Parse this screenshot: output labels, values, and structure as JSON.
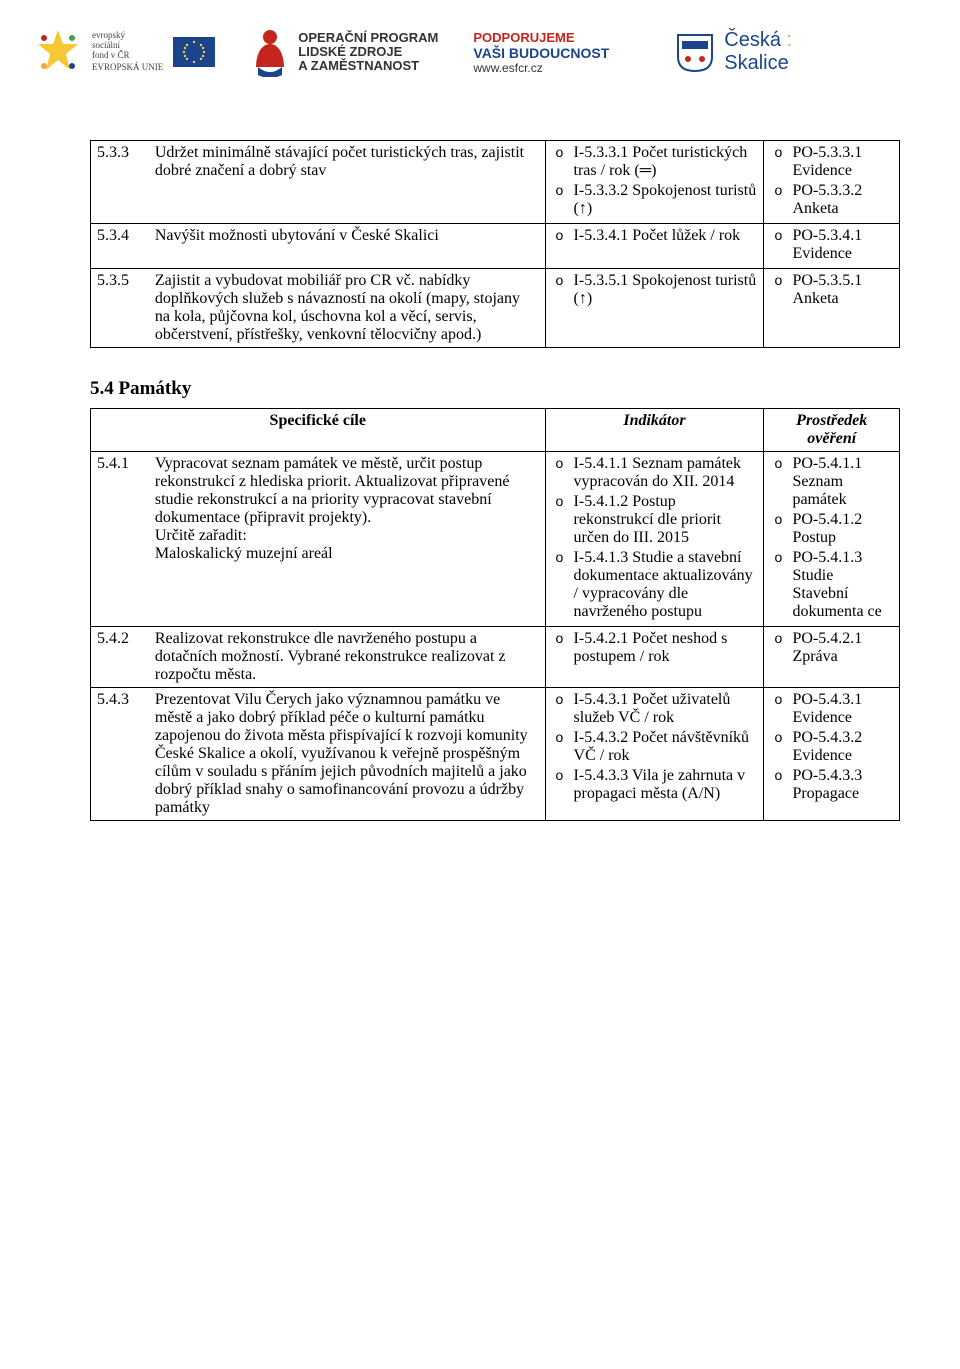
{
  "logos": {
    "esf_text1": "evropský",
    "esf_text2": "sociální",
    "esf_text3": "fond v ČR",
    "esf_text4": "EVROPSKÁ UNIE",
    "oplz_text1": "OPERAČNÍ PROGRAM",
    "oplz_text2": "LIDSKÉ ZDROJE",
    "oplz_text3": "A ZAMĚSTNANOST",
    "podporujeme_text1": "PODPORUJEME",
    "podporujeme_text2": "VAŠI BUDOUCNOST",
    "podporujeme_text3": "www.esfcr.cz",
    "skalice_text1": "Česká",
    "skalice_text2": "Skalice"
  },
  "table1": {
    "rows": [
      {
        "num": "5.3.3",
        "desc": "Udržet minimálně stávající počet turistických tras, zajistit dobré značení a dobrý stav",
        "ind": [
          "I-5.3.3.1 Počet turistických tras / rok (═)",
          "I-5.3.3.2 Spokojenost turistů (↑)"
        ],
        "po": [
          "PO-5.3.3.1 Evidence",
          "PO-5.3.3.2 Anketa"
        ]
      },
      {
        "num": "5.3.4",
        "desc": "Navýšit možnosti ubytování v České Skalici",
        "ind": [
          "I-5.3.4.1 Počet lůžek / rok"
        ],
        "po": [
          "PO-5.3.4.1 Evidence"
        ]
      },
      {
        "num": "5.3.5",
        "desc": "Zajistit a vybudovat mobiliář pro CR vč. nabídky doplňkových služeb s návazností na okolí (mapy, stojany na kola, půjčovna kol, úschovna kol a věcí, servis, občerstvení, přístřešky, venkovní tělocvičny apod.)",
        "ind": [
          "I-5.3.5.1 Spokojenost turistů (↑)"
        ],
        "po": [
          "PO-5.3.5.1 Anketa"
        ]
      }
    ]
  },
  "section_heading": "5.4 Památky",
  "table2": {
    "header": {
      "col1": "Specifické cíle",
      "col2": "Indikátor",
      "col3": "Prostředek ověření"
    },
    "rows": [
      {
        "num": "5.4.1",
        "desc": "Vypracovat seznam památek ve městě, určit postup rekonstrukcí z hlediska priorit. Aktualizovat připravené studie rekonstrukcí a na priority vypracovat stavební dokumentace (připravit projekty).\nUrčitě zařadit:\nMaloskalický muzejní areál",
        "ind": [
          "I-5.4.1.1 Seznam památek vypracován do XII. 2014",
          "I-5.4.1.2 Postup rekonstrukcí dle priorit určen do III. 2015",
          "I-5.4.1.3 Studie a stavební dokumentace aktualizovány / vypracovány dle navrženého postupu"
        ],
        "po": [
          "PO-5.4.1.1 Seznam památek",
          "PO-5.4.1.2 Postup",
          "PO-5.4.1.3 Studie Stavební dokumenta ce"
        ]
      },
      {
        "num": "5.4.2",
        "desc": "Realizovat rekonstrukce dle navrženého postupu a dotačních možností. Vybrané rekonstrukce realizovat z rozpočtu města.",
        "ind": [
          "I-5.4.2.1 Počet neshod s postupem / rok"
        ],
        "po": [
          "PO-5.4.2.1 Zpráva"
        ]
      },
      {
        "num": "5.4.3",
        "desc": "Prezentovat Vilu Čerych jako významnou památku ve městě a jako dobrý příklad péče o kulturní památku zapojenou do života města přispívající k rozvoji komunity České Skalice a okolí, využívanou k veřejně prospěšným cílům v souladu s přáním jejich původních majitelů a jako dobrý příklad snahy o samofinancování provozu a údržby památky",
        "ind": [
          "I-5.4.3.1 Počet uživatelů služeb VČ / rok",
          "I-5.4.3.2 Počet návštěvníků VČ / rok",
          "I-5.4.3.3 Vila je zahrnuta v propagaci města (A/N)"
        ],
        "po": [
          "PO-5.4.3.1 Evidence",
          "PO-5.4.3.2 Evidence",
          "PO-5.4.3.3 Propagace"
        ]
      }
    ]
  }
}
